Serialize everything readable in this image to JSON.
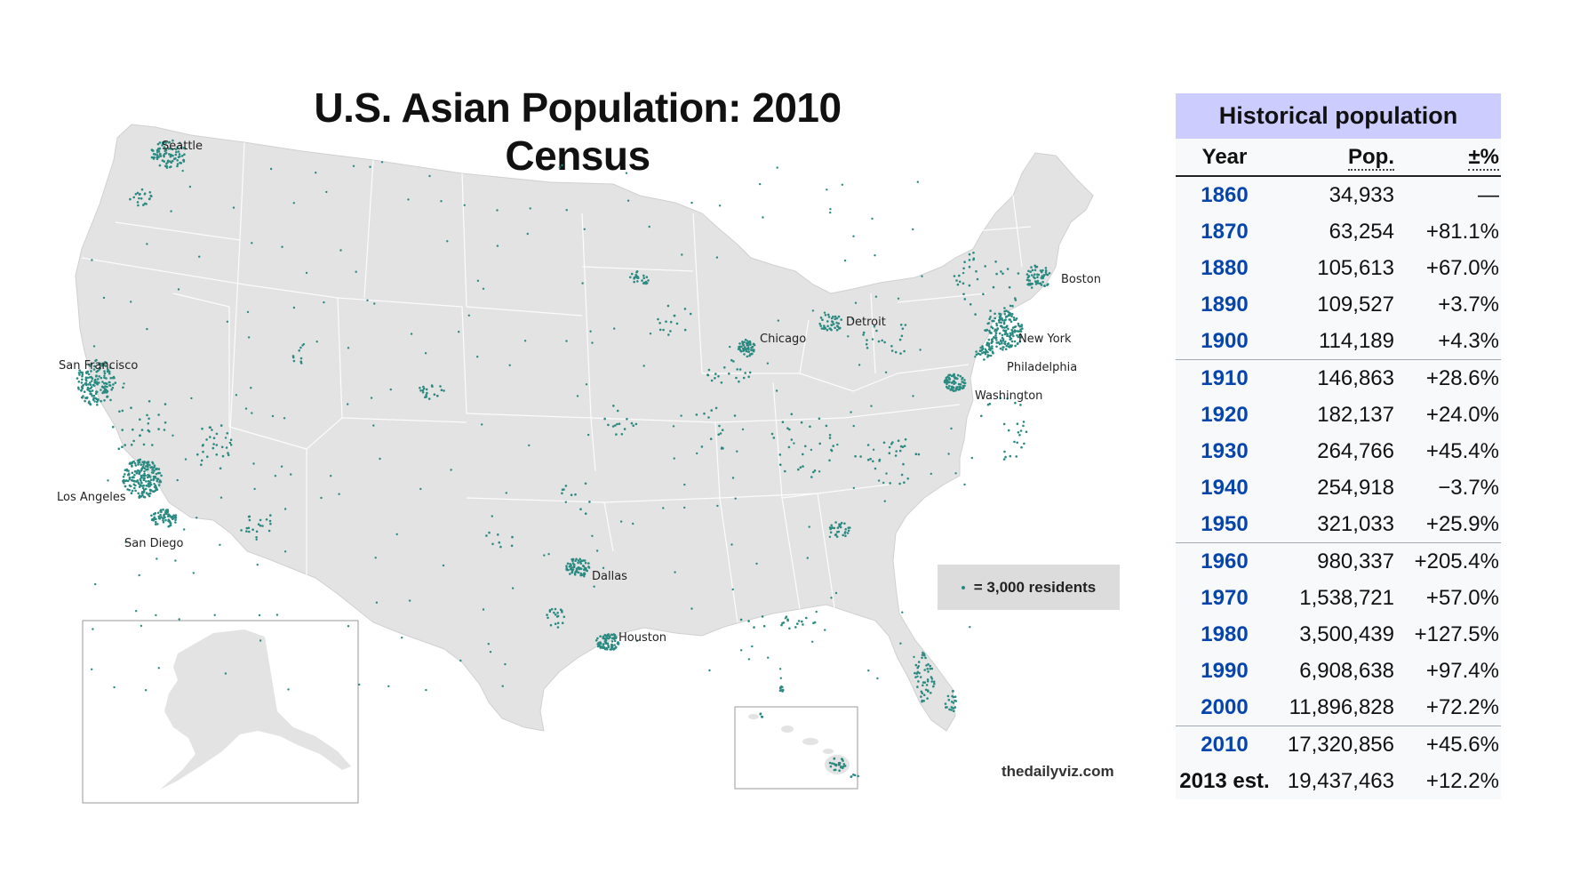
{
  "title": "U.S. Asian Population: 2010 Census",
  "legend": {
    "label": "= 3,000 residents",
    "dot_color": "#2a8a82"
  },
  "credit": "thedailyviz.com",
  "colors": {
    "land": "#e3e3e3",
    "border": "#ffffff",
    "dots": "#2a8a82",
    "table_caption_bg": "#ccccff",
    "table_bg": "#f8f9fa",
    "link": "#0645ad"
  },
  "cities": [
    "Seattle",
    "San Francisco",
    "Los Angeles",
    "San Diego",
    "Chicago",
    "Detroit",
    "Boston",
    "New York",
    "Philadelphia",
    "Washington",
    "Dallas",
    "Houston"
  ],
  "table": {
    "caption": "Historical population",
    "headers": {
      "year": "Year",
      "pop": "Pop.",
      "pct": "±%"
    },
    "rows": [
      {
        "year": "1860",
        "pop": "34,933",
        "pct": "—"
      },
      {
        "year": "1870",
        "pop": "63,254",
        "pct": "+81.1%"
      },
      {
        "year": "1880",
        "pop": "105,613",
        "pct": "+67.0%"
      },
      {
        "year": "1890",
        "pop": "109,527",
        "pct": "+3.7%"
      },
      {
        "year": "1900",
        "pop": "114,189",
        "pct": "+4.3%"
      },
      {
        "year": "1910",
        "pop": "146,863",
        "pct": "+28.6%"
      },
      {
        "year": "1920",
        "pop": "182,137",
        "pct": "+24.0%"
      },
      {
        "year": "1930",
        "pop": "264,766",
        "pct": "+45.4%"
      },
      {
        "year": "1940",
        "pop": "254,918",
        "pct": "−3.7%"
      },
      {
        "year": "1950",
        "pop": "321,033",
        "pct": "+25.9%"
      },
      {
        "year": "1960",
        "pop": "980,337",
        "pct": "+205.4%"
      },
      {
        "year": "1970",
        "pop": "1,538,721",
        "pct": "+57.0%"
      },
      {
        "year": "1980",
        "pop": "3,500,439",
        "pct": "+127.5%"
      },
      {
        "year": "1990",
        "pop": "6,908,638",
        "pct": "+97.4%"
      },
      {
        "year": "2000",
        "pop": "11,896,828",
        "pct": "+72.2%"
      },
      {
        "year": "2010",
        "pop": "17,320,856",
        "pct": "+45.6%"
      },
      {
        "year": "2013 est.",
        "pop": "19,437,463",
        "pct": "+12.2%"
      }
    ]
  }
}
